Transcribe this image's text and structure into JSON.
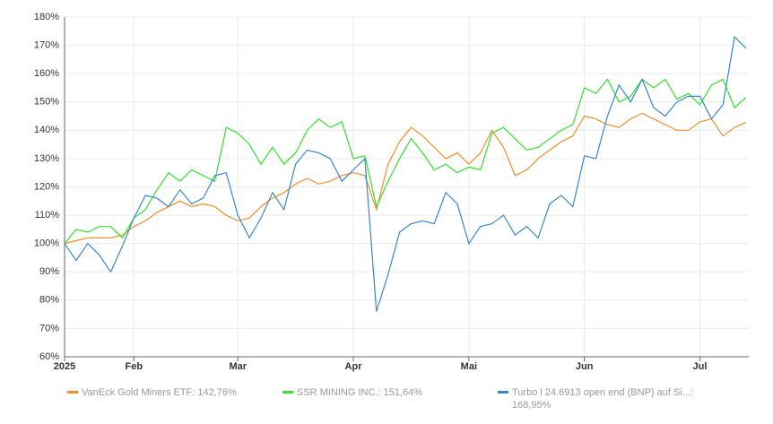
{
  "chart_data": {
    "type": "line",
    "categories": [
      "2025",
      null,
      null,
      null,
      null,
      null,
      "Feb",
      null,
      null,
      null,
      null,
      null,
      null,
      null,
      null,
      "Mar",
      null,
      null,
      null,
      null,
      null,
      null,
      null,
      null,
      null,
      "Apr",
      null,
      null,
      null,
      null,
      null,
      null,
      null,
      null,
      null,
      "Mai",
      null,
      null,
      null,
      null,
      null,
      null,
      null,
      null,
      null,
      "Jun",
      null,
      null,
      null,
      null,
      null,
      null,
      null,
      null,
      null,
      "Jul",
      null,
      null,
      null,
      null
    ],
    "series": [
      {
        "name": "VanEck Gold Miners ETF: 142,76%",
        "color": "#e8912d",
        "values": [
          100,
          101,
          102,
          102,
          102,
          103,
          106,
          108,
          111,
          113,
          115,
          113,
          114,
          113,
          110,
          108,
          109,
          113,
          116,
          118,
          121,
          123,
          121,
          122,
          124,
          125,
          124,
          112,
          128,
          136,
          141,
          138,
          134,
          130,
          132,
          128,
          132,
          140,
          134,
          124,
          126,
          130,
          133,
          136,
          138,
          145,
          144,
          142,
          141,
          144,
          146,
          144,
          142,
          140,
          140,
          143,
          144,
          138,
          141,
          142.76
        ]
      },
      {
        "name": "SSR MINING INC.: 151,64%",
        "color": "#33e02f",
        "values": [
          100,
          105,
          104,
          106,
          106,
          102,
          109,
          112,
          119,
          125,
          122,
          126,
          124,
          122,
          141,
          139,
          135,
          128,
          134,
          128,
          132,
          140,
          144,
          141,
          143,
          130,
          131,
          113,
          122,
          130,
          137,
          132,
          126,
          128,
          125,
          127,
          126,
          139,
          141,
          137,
          133,
          134,
          137,
          140,
          142,
          155,
          153,
          158,
          150,
          152,
          158,
          155,
          158,
          151,
          153,
          149,
          156,
          158,
          148,
          151.64
        ]
      },
      {
        "name": "Turbo l 24.6913 open end (BNP) auf Si...: 168,95%",
        "color": "#3a87c8",
        "values": [
          100,
          94,
          100,
          96,
          90,
          99,
          109,
          117,
          116,
          113,
          119,
          114,
          116,
          124,
          125,
          110,
          102,
          109,
          118,
          112,
          128,
          133,
          132,
          130,
          122,
          126,
          130,
          76,
          89,
          104,
          107,
          108,
          107,
          118,
          114,
          100,
          106,
          107,
          110,
          103,
          106,
          102,
          114,
          117,
          113,
          131,
          130,
          145,
          156,
          150,
          158,
          148,
          145,
          150,
          152,
          152,
          144,
          149,
          173,
          168.95
        ]
      }
    ],
    "ylim": [
      60,
      180
    ],
    "yticks": [
      {
        "value": 60,
        "label": "60%"
      },
      {
        "value": 70,
        "label": "70%"
      },
      {
        "value": 80,
        "label": "80%"
      },
      {
        "value": 90,
        "label": "90%"
      },
      {
        "value": 100,
        "label": "100%"
      },
      {
        "value": 110,
        "label": "110%"
      },
      {
        "value": 120,
        "label": "120%"
      },
      {
        "value": 130,
        "label": "130%"
      },
      {
        "value": 140,
        "label": "140%"
      },
      {
        "value": 150,
        "label": "150%"
      },
      {
        "value": 160,
        "label": "160%"
      },
      {
        "value": 170,
        "label": "170%"
      },
      {
        "value": 180,
        "label": "180%"
      }
    ],
    "grid": true
  }
}
